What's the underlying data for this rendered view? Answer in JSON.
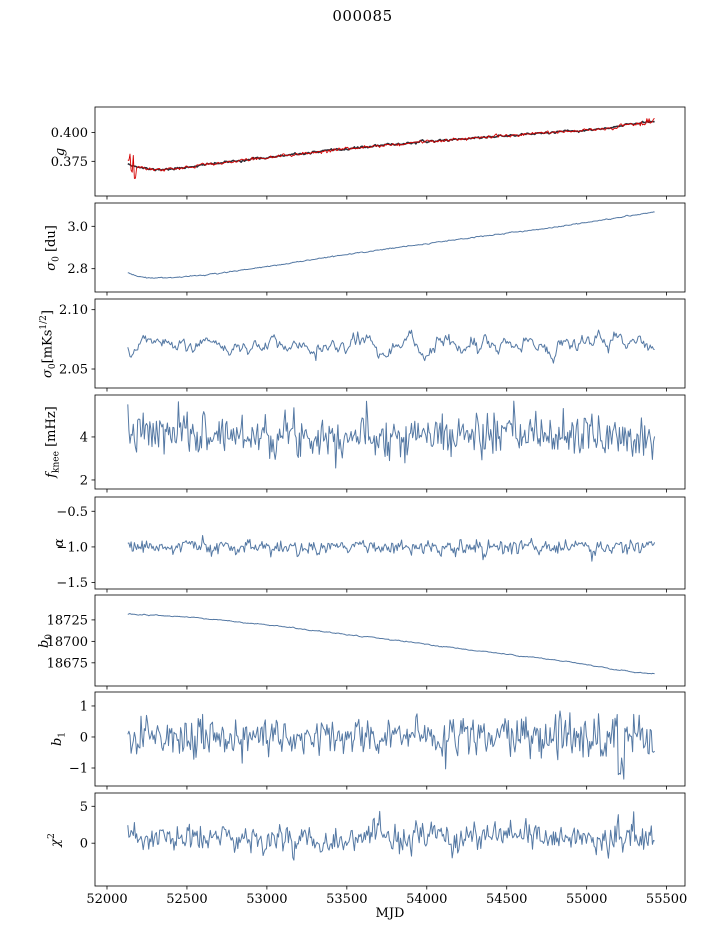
{
  "title": "000085",
  "chart_data": {
    "type": "line",
    "title": "000085",
    "xlabel": "MJD",
    "legend": "none",
    "grid": false,
    "xlim": [
      51925,
      55615
    ],
    "x_ticks": [
      52000,
      52500,
      53000,
      53500,
      54000,
      54500,
      55000,
      55500
    ],
    "x_tick_labels": [
      "52000",
      "52500",
      "53000",
      "53500",
      "54000",
      "54500",
      "55000",
      "55500"
    ],
    "x_data_range": [
      52130,
      55425
    ],
    "n_points": 480,
    "panels": [
      {
        "name": "g",
        "ylabel": [
          {
            "t": "g",
            "i": true
          }
        ],
        "ylim": [
          0.345,
          0.422
        ],
        "yticks": [
          {
            "v": 0.4,
            "label": "0.400"
          },
          {
            "v": 0.375,
            "label": "0.375"
          }
        ],
        "series": [
          {
            "name": "g-fit",
            "color": "#2f2f38",
            "lw": 1.6,
            "seed": 11,
            "sigma": 0.0005,
            "ar": 0.4,
            "trend": [
              [
                52130,
                0.3735
              ],
              [
                52180,
                0.3705
              ],
              [
                52280,
                0.3678
              ],
              [
                52400,
                0.3682
              ],
              [
                52600,
                0.3718
              ],
              [
                52900,
                0.3768
              ],
              [
                53200,
                0.3812
              ],
              [
                53500,
                0.3858
              ],
              [
                53800,
                0.3898
              ],
              [
                54100,
                0.3932
              ],
              [
                54400,
                0.3962
              ],
              [
                54700,
                0.3992
              ],
              [
                55000,
                0.4018
              ],
              [
                55150,
                0.4038
              ],
              [
                55300,
                0.4078
              ],
              [
                55425,
                0.4098
              ]
            ]
          },
          {
            "name": "g-raw",
            "color": "#d40000",
            "lw": 0.9,
            "seed": 12,
            "sigma": 0.0007,
            "ar": 0.3,
            "trend": [
              [
                52130,
                0.3735
              ],
              [
                52180,
                0.3705
              ],
              [
                52280,
                0.3678
              ],
              [
                52400,
                0.3682
              ],
              [
                52600,
                0.3718
              ],
              [
                52900,
                0.3768
              ],
              [
                53200,
                0.3812
              ],
              [
                53500,
                0.3858
              ],
              [
                53800,
                0.3898
              ],
              [
                54100,
                0.3932
              ],
              [
                54400,
                0.3962
              ],
              [
                54700,
                0.3992
              ],
              [
                55000,
                0.4018
              ],
              [
                55150,
                0.4038
              ],
              [
                55300,
                0.4078
              ],
              [
                55425,
                0.4098
              ]
            ],
            "extras": [
              {
                "x0": 52130,
                "x1": 52180,
                "sigma": 0.0065,
                "bias": -0.006
              },
              {
                "x0": 55320,
                "x1": 55425,
                "sigma": 0.0022,
                "bias": 0
              }
            ]
          }
        ]
      },
      {
        "name": "sigma0-du",
        "ylabel": [
          {
            "t": "σ",
            "i": true
          },
          {
            "t": "0",
            "s": "sub"
          },
          {
            "t": " [du]"
          }
        ],
        "ylim": [
          2.69,
          3.11
        ],
        "yticks": [
          {
            "v": 3.0,
            "label": "3.0"
          },
          {
            "v": 2.8,
            "label": "2.8"
          }
        ],
        "series": [
          {
            "name": "sigma0-du",
            "color": "#5579a4",
            "lw": 1.0,
            "seed": 3,
            "sigma": 0.0015,
            "ar": 0.5,
            "trend": [
              [
                52130,
                2.78
              ],
              [
                52200,
                2.762
              ],
              [
                52300,
                2.757
              ],
              [
                52450,
                2.76
              ],
              [
                52700,
                2.778
              ],
              [
                53000,
                2.81
              ],
              [
                53300,
                2.845
              ],
              [
                53600,
                2.878
              ],
              [
                53900,
                2.908
              ],
              [
                54200,
                2.938
              ],
              [
                54500,
                2.968
              ],
              [
                54800,
                2.995
              ],
              [
                55100,
                3.03
              ],
              [
                55250,
                3.048
              ],
              [
                55425,
                3.068
              ]
            ]
          }
        ]
      },
      {
        "name": "sigma0-mks",
        "ylabel": [
          {
            "t": "σ",
            "i": true
          },
          {
            "t": "0",
            "s": "sub"
          },
          {
            "t": "[mKs"
          },
          {
            "t": "1/2",
            "s": "sup"
          },
          {
            "t": "]"
          }
        ],
        "ylim": [
          2.034,
          2.109
        ],
        "yticks": [
          {
            "v": 2.1,
            "label": "2.10"
          },
          {
            "v": 2.05,
            "label": "2.05"
          }
        ],
        "series": [
          {
            "name": "sigma0-mks",
            "color": "#5579a4",
            "lw": 1.0,
            "seed": 5,
            "sigma": 0.0045,
            "ar": 0.8,
            "trend": [
              [
                52130,
                2.068
              ],
              [
                52400,
                2.069
              ],
              [
                52700,
                2.071
              ],
              [
                53100,
                2.07
              ],
              [
                53500,
                2.071
              ],
              [
                54000,
                2.072
              ],
              [
                54500,
                2.07
              ],
              [
                55000,
                2.071
              ],
              [
                55425,
                2.07
              ]
            ]
          }
        ]
      },
      {
        "name": "f-knee",
        "ylabel": [
          {
            "t": "f",
            "i": true
          },
          {
            "t": "knee",
            "s": "sub"
          },
          {
            "t": " [mHz]"
          }
        ],
        "ylim": [
          1.58,
          5.95
        ],
        "yticks": [
          {
            "v": 4,
            "label": "4"
          },
          {
            "v": 2,
            "label": "2"
          }
        ],
        "series": [
          {
            "name": "f-knee",
            "color": "#5579a4",
            "lw": 1.0,
            "seed": 7,
            "sigma": 0.5,
            "ar": 0.15,
            "trend": [
              [
                52130,
                4.15
              ],
              [
                55425,
                4.05
              ]
            ]
          }
        ]
      },
      {
        "name": "alpha",
        "ylabel": [
          {
            "t": "α",
            "i": true
          }
        ],
        "ylim": [
          -1.59,
          -0.3
        ],
        "yticks": [
          {
            "v": -0.5,
            "label": "−0.5"
          },
          {
            "v": -1.0,
            "label": "−1.0"
          },
          {
            "v": -1.5,
            "label": "−1.5"
          }
        ],
        "series": [
          {
            "name": "alpha",
            "color": "#5579a4",
            "lw": 1.0,
            "seed": 9,
            "sigma": 0.055,
            "ar": 0.25,
            "trend": [
              [
                52130,
                -1.005
              ],
              [
                55425,
                -1.0
              ]
            ]
          }
        ]
      },
      {
        "name": "b0",
        "ylabel": [
          {
            "t": "b",
            "i": true
          },
          {
            "t": "0",
            "s": "sub"
          }
        ],
        "ylim": [
          18648,
          18754
        ],
        "yticks": [
          {
            "v": 18725,
            "label": "18725"
          },
          {
            "v": 18700,
            "label": "18700"
          },
          {
            "v": 18675,
            "label": "18675"
          }
        ],
        "series": [
          {
            "name": "b0",
            "color": "#5579a4",
            "lw": 1.0,
            "seed": 13,
            "sigma": 0.35,
            "ar": 0.6,
            "trend": [
              [
                52130,
                18731.5
              ],
              [
                52300,
                18730.5
              ],
              [
                52500,
                18728
              ],
              [
                52700,
                18725
              ],
              [
                52900,
                18721
              ],
              [
                53100,
                18717
              ],
              [
                53300,
                18712.5
              ],
              [
                53500,
                18708
              ],
              [
                53700,
                18703.5
              ],
              [
                53900,
                18699
              ],
              [
                54100,
                18694
              ],
              [
                54300,
                18689.5
              ],
              [
                54500,
                18685
              ],
              [
                54700,
                18680.5
              ],
              [
                54900,
                18676
              ],
              [
                55050,
                18671
              ],
              [
                55200,
                18666.5
              ],
              [
                55300,
                18664
              ],
              [
                55425,
                18662
              ]
            ]
          }
        ]
      },
      {
        "name": "b1",
        "ylabel": [
          {
            "t": "b",
            "i": true
          },
          {
            "t": "1",
            "s": "sub"
          }
        ],
        "ylim": [
          -1.58,
          1.45
        ],
        "yticks": [
          {
            "v": 1,
            "label": "1"
          },
          {
            "v": 0,
            "label": "0"
          },
          {
            "v": -1,
            "label": "−1"
          }
        ],
        "series": [
          {
            "name": "b1",
            "color": "#5579a4",
            "lw": 1.0,
            "seed": 17,
            "sigma": 0.34,
            "ar": 0.12,
            "trend": [
              [
                52130,
                -0.02
              ],
              [
                55425,
                0.0
              ]
            ],
            "extras": [
              {
                "x0": 55195,
                "x1": 55235,
                "sigma": 0.25,
                "bias": -0.85
              }
            ]
          }
        ]
      },
      {
        "name": "chi2",
        "ylabel": [
          {
            "t": "χ",
            "i": true
          },
          {
            "t": "2",
            "s": "sup"
          }
        ],
        "ylim": [
          -5.8,
          6.8
        ],
        "yticks": [
          {
            "v": 5,
            "label": "5"
          },
          {
            "v": 0,
            "label": "0"
          }
        ],
        "series": [
          {
            "name": "chi2",
            "color": "#5579a4",
            "lw": 1.0,
            "seed": 23,
            "sigma": 1.0,
            "ar": 0.3,
            "trend": [
              [
                52130,
                0.55
              ],
              [
                55425,
                0.75
              ]
            ]
          }
        ]
      }
    ]
  }
}
